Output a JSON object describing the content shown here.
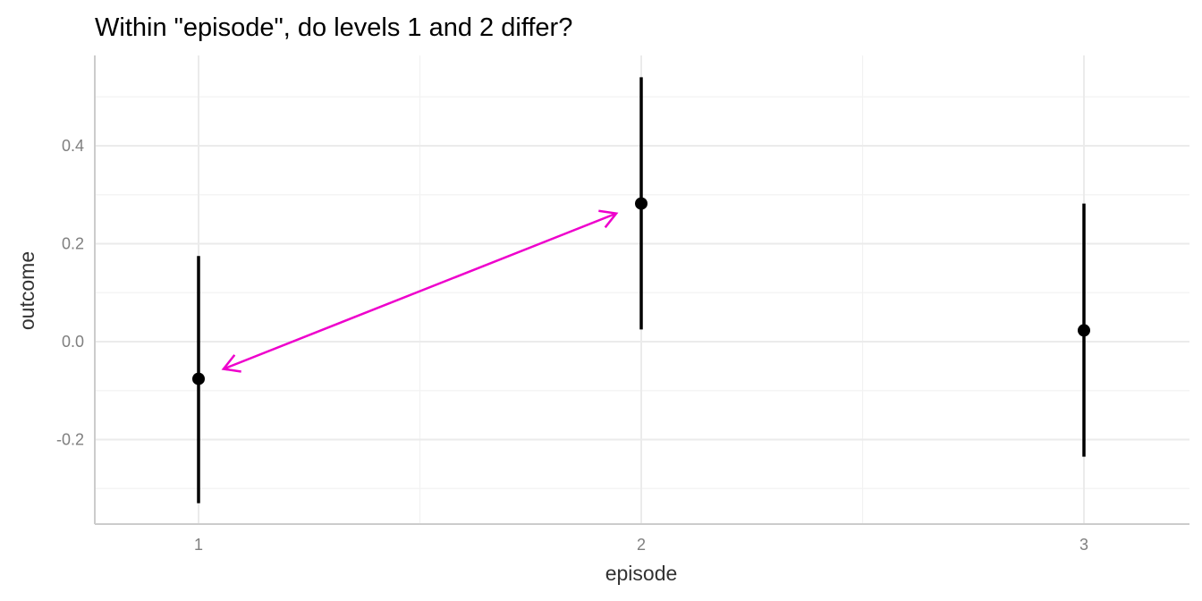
{
  "chart_data": {
    "type": "scatter",
    "title": "Within \"episode\", do levels 1 and 2 differ?",
    "xlabel": "episode",
    "ylabel": "outcome",
    "categories": [
      "1",
      "2",
      "3"
    ],
    "y_ticks": [
      -0.2,
      0.0,
      0.2,
      0.4
    ],
    "y_tick_labels": [
      "-0.2",
      "0.0",
      "0.2",
      "0.4"
    ],
    "ylim": [
      -0.37,
      0.59
    ],
    "grid": true,
    "series": [
      {
        "points": [
          {
            "x": "1",
            "y": -0.076,
            "ymin": -0.33,
            "ymax": 0.175
          },
          {
            "x": "2",
            "y": 0.282,
            "ymin": 0.025,
            "ymax": 0.54
          },
          {
            "x": "3",
            "y": 0.023,
            "ymin": -0.235,
            "ymax": 0.282
          }
        ],
        "color": "#000000"
      }
    ],
    "annotations": [
      {
        "type": "double-arrow",
        "from": {
          "x": "1",
          "y": -0.076
        },
        "to": {
          "x": "2",
          "y": 0.282
        },
        "color": "#ee00cc"
      }
    ]
  }
}
